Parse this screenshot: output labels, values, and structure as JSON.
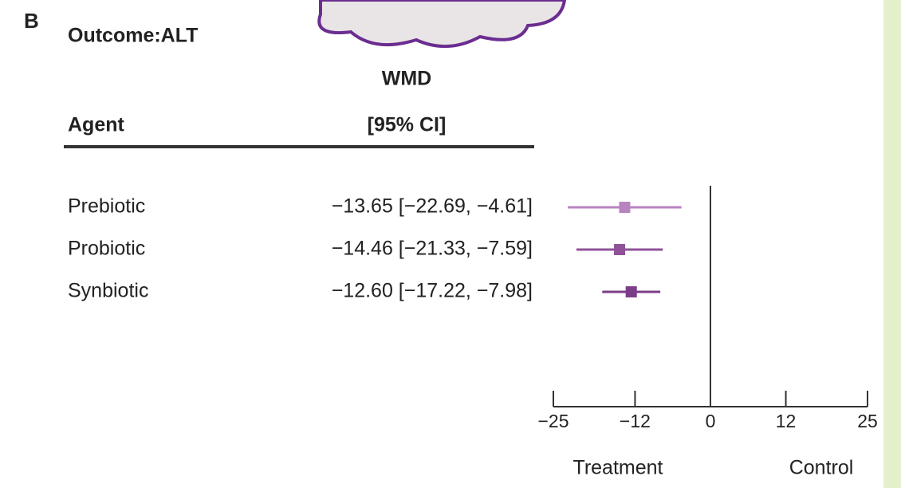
{
  "chart_data": {
    "type": "forest",
    "panel_label": "B",
    "title": "Outcome:ALT",
    "column_headers": {
      "agent": "Agent",
      "effect_top": "WMD",
      "effect_bottom": "[95% CI]"
    },
    "categories": [
      "Prebiotic",
      "Probiotic",
      "Synbiotic"
    ],
    "values": [
      -13.65,
      -14.46,
      -12.6
    ],
    "lower": [
      -22.69,
      -21.33,
      -17.22
    ],
    "upper": [
      -4.61,
      -7.59,
      -7.98
    ],
    "value_labels": [
      "−13.65 [−22.69, −4.61]",
      "−14.46 [−21.33, −7.59]",
      "−12.60 [−17.22, −7.98]"
    ],
    "colors": [
      "#b884c0",
      "#8f5298",
      "#7b3d87"
    ],
    "xlim": [
      -25,
      25
    ],
    "xticks": [
      {
        "value": -25,
        "label": "−25"
      },
      {
        "value": -12,
        "label": "−12"
      },
      0,
      12,
      25
    ],
    "xlabel_left": "Treatment",
    "xlabel_right": "Control"
  }
}
